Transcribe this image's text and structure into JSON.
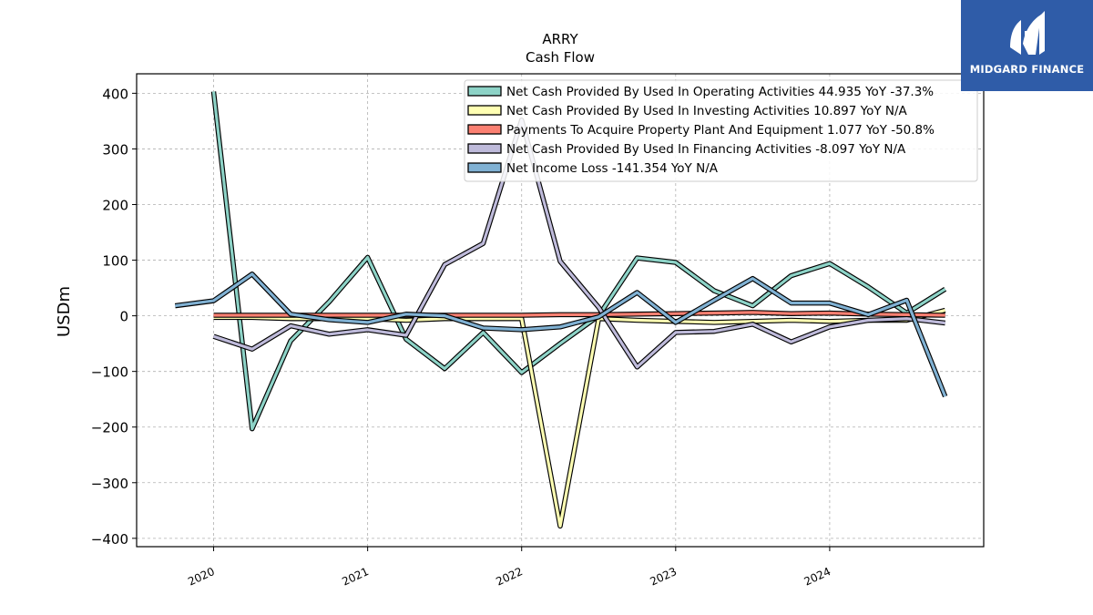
{
  "chart_data": {
    "type": "line",
    "title": "ARRY",
    "subtitle": "Cash Flow",
    "ylabel": "USDm",
    "xlabel": "",
    "ylim": [
      -415,
      435
    ],
    "xlim": [
      2019.5,
      2025.0
    ],
    "yticks": [
      400,
      300,
      200,
      100,
      0,
      -100,
      -200,
      -300,
      -400
    ],
    "ytick_labels": [
      "400",
      "300",
      "200",
      "100",
      "0",
      "−100",
      "−200",
      "−300",
      "−400"
    ],
    "xticks": [
      2020,
      2021,
      2022,
      2023,
      2024
    ],
    "xtick_labels": [
      "2020",
      "2021",
      "2022",
      "2023",
      "2024"
    ],
    "grid": true,
    "legend_position": "top-right",
    "series": [
      {
        "name": "Net Cash Provided By Used In Operating Activities",
        "legend": "Net Cash Provided By Used In Operating Activities  44.935 YoY -37.3%",
        "color": "#8dd3c7",
        "x": [
          2020.0,
          2020.25,
          2020.5,
          2020.75,
          2021.0,
          2021.25,
          2021.5,
          2021.75,
          2022.0,
          2022.25,
          2022.5,
          2022.75,
          2023.0,
          2023.25,
          2023.5,
          2023.75,
          2024.0,
          2024.25,
          2024.5,
          2024.75
        ],
        "y": [
          403,
          -203,
          -45,
          25,
          105,
          -42,
          -95,
          -30,
          -102,
          -50,
          0,
          104,
          96,
          45,
          18,
          72,
          94,
          52,
          5,
          48
        ]
      },
      {
        "name": "Net Cash Provided By Used In Investing Activities",
        "legend": "Net Cash Provided By Used In Investing Activities  10.897 YoY N/A",
        "color": "#ffffb3",
        "x": [
          2020.0,
          2020.25,
          2020.5,
          2020.75,
          2021.0,
          2021.25,
          2021.5,
          2021.75,
          2022.0,
          2022.25,
          2022.5,
          2022.75,
          2023.0,
          2023.25,
          2023.5,
          2023.75,
          2024.0,
          2024.25,
          2024.5,
          2024.75
        ],
        "y": [
          -3,
          -3,
          -5,
          -5,
          -5,
          -8,
          -5,
          -5,
          -5,
          -378,
          -5,
          -8,
          -10,
          -12,
          -10,
          -8,
          -10,
          -8,
          -8,
          10
        ]
      },
      {
        "name": "Payments To Acquire Property Plant And Equipment",
        "legend": "Payments To Acquire Property Plant And Equipment  1.077 YoY -50.8%",
        "color": "#fb8072",
        "x": [
          2020.0,
          2020.25,
          2020.5,
          2020.75,
          2021.0,
          2021.25,
          2021.5,
          2021.75,
          2022.0,
          2022.25,
          2022.5,
          2022.75,
          2023.0,
          2023.25,
          2023.5,
          2023.75,
          2024.0,
          2024.25,
          2024.5,
          2024.75
        ],
        "y": [
          1,
          1,
          1,
          1,
          1,
          1,
          1,
          1,
          1,
          2,
          2,
          3,
          4,
          5,
          6,
          4,
          5,
          3,
          2,
          1
        ]
      },
      {
        "name": "Net Cash Provided By Used In Financing Activities",
        "legend": "Net Cash Provided By Used In Financing Activities  -8.097 YoY N/A",
        "color": "#bebada",
        "x": [
          2020.0,
          2020.25,
          2020.5,
          2020.75,
          2021.0,
          2021.25,
          2021.5,
          2021.75,
          2022.0,
          2022.25,
          2022.5,
          2022.75,
          2023.0,
          2023.25,
          2023.5,
          2023.75,
          2024.0,
          2024.25,
          2024.5,
          2024.75
        ],
        "y": [
          -37,
          -60,
          -18,
          -33,
          -25,
          -35,
          92,
          130,
          352,
          98,
          15,
          -92,
          -30,
          -28,
          -15,
          -47,
          -20,
          -8,
          -5,
          -13
        ]
      },
      {
        "name": "Net Income Loss",
        "legend": "Net Income Loss  -141.354 YoY N/A",
        "color": "#80b1d3",
        "x": [
          2019.75,
          2020.0,
          2020.25,
          2020.5,
          2020.75,
          2021.0,
          2021.25,
          2021.5,
          2021.75,
          2022.0,
          2022.25,
          2022.5,
          2022.75,
          2023.0,
          2023.25,
          2023.5,
          2023.75,
          2024.0,
          2024.25,
          2024.5,
          2024.75
        ],
        "y": [
          18,
          27,
          75,
          3,
          -7,
          -12,
          3,
          0,
          -22,
          -25,
          -20,
          -2,
          42,
          -12,
          28,
          67,
          23,
          23,
          2,
          28,
          -145
        ]
      }
    ]
  },
  "brand": {
    "name": "MIDGARD FINANCE",
    "color": "#2f5ca8"
  }
}
